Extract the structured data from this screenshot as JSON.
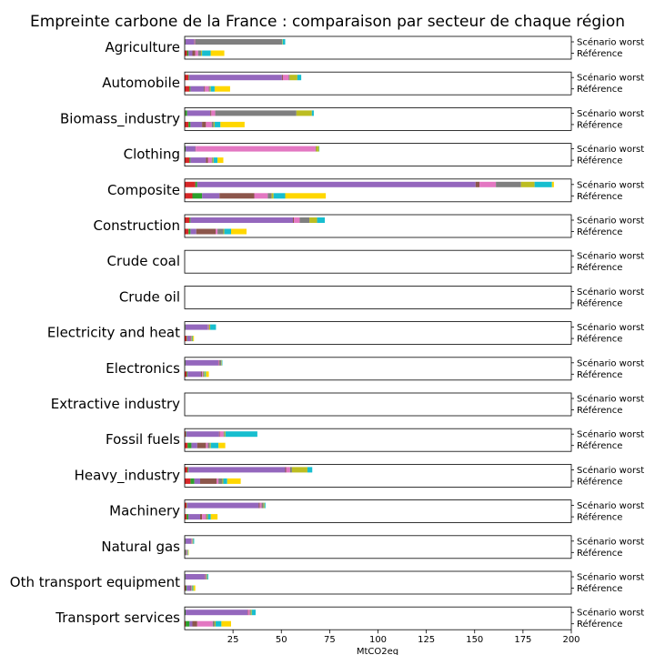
{
  "chart_data": {
    "type": "bar",
    "orientation": "horizontal-stacked",
    "title": "Empreinte carbone de la France : comparaison par secteur de chaque région",
    "xlabel": "MtCO2eq",
    "xlim": [
      0,
      200
    ],
    "xticks": [
      25,
      50,
      75,
      100,
      125,
      150,
      175,
      200
    ],
    "row_labels": [
      "Scénario worst",
      "Référence"
    ],
    "colors": [
      "#d62728",
      "#2ca02c",
      "#9467bd",
      "#8c564b",
      "#e377c2",
      "#7f7f7f",
      "#bcbd22",
      "#17becf",
      "#ffd700"
    ],
    "sectors": [
      {
        "name": "Agriculture",
        "worst": [
          0.2,
          0.2,
          4.5,
          0.2,
          0.3,
          45.0,
          0.3,
          1.3,
          0
        ],
        "reference": [
          1.2,
          0.8,
          2.0,
          1.5,
          1.5,
          1.5,
          0.5,
          4.5,
          7.0
        ]
      },
      {
        "name": "Automobile",
        "worst": [
          2.0,
          0.3,
          48.0,
          0.5,
          3.0,
          0.5,
          4.0,
          2.0,
          0
        ],
        "reference": [
          2.5,
          0.5,
          7.0,
          0.5,
          2.0,
          0.5,
          0.5,
          2.0,
          8.0
        ]
      },
      {
        "name": "Biomass_industry",
        "worst": [
          0.3,
          1.0,
          12.0,
          0.5,
          2.0,
          42.0,
          8.0,
          1.0,
          0
        ],
        "reference": [
          2.0,
          1.0,
          6.0,
          2.0,
          3.0,
          1.0,
          0.5,
          3.0,
          12.5
        ]
      },
      {
        "name": "Clothing",
        "worst": [
          0.2,
          0.3,
          5.0,
          0.2,
          62.0,
          0.3,
          1.5,
          0.2,
          0
        ],
        "reference": [
          2.5,
          0.5,
          8.0,
          1.0,
          2.0,
          0.5,
          0.5,
          2.0,
          3.0
        ]
      },
      {
        "name": "Composite",
        "worst": [
          5.5,
          1.0,
          144.0,
          2.0,
          8.5,
          13.0,
          7.0,
          9.0,
          1.0
        ],
        "reference": [
          4.0,
          5.0,
          9.0,
          18.0,
          7.0,
          2.0,
          1.0,
          6.0,
          21.0
        ]
      },
      {
        "name": "Construction",
        "worst": [
          2.5,
          0.5,
          53.0,
          0.5,
          3.0,
          5.0,
          4.0,
          4.0,
          0
        ],
        "reference": [
          2.0,
          1.0,
          3.0,
          10.0,
          1.0,
          3.0,
          0.5,
          3.5,
          8.0
        ]
      },
      {
        "name": "Crude coal",
        "worst": [
          0,
          0,
          0,
          0,
          0,
          0,
          0,
          0,
          0
        ],
        "reference": [
          0,
          0,
          0,
          0,
          0,
          0,
          0,
          0,
          0
        ]
      },
      {
        "name": "Crude oil",
        "worst": [
          0,
          0,
          0,
          0,
          0,
          0,
          0,
          0,
          0
        ],
        "reference": [
          0,
          0,
          0,
          0,
          0,
          0,
          0,
          0,
          0
        ]
      },
      {
        "name": "Electricity and heat",
        "worst": [
          0.2,
          0.2,
          11.5,
          0.2,
          0.3,
          0.3,
          0.5,
          3.0,
          0
        ],
        "reference": [
          1.0,
          0.3,
          1.5,
          0.3,
          0.3,
          0.3,
          0.3,
          0.3,
          0.5
        ]
      },
      {
        "name": "Electronics",
        "worst": [
          0.2,
          0.2,
          17.0,
          0.2,
          0.3,
          1.0,
          0.3,
          0.3,
          0
        ],
        "reference": [
          1.0,
          0.5,
          7.0,
          0.5,
          0.5,
          0.5,
          0.5,
          0.5,
          1.5
        ]
      },
      {
        "name": "Extractive industry",
        "worst": [
          0,
          0,
          0,
          0,
          0,
          0,
          0,
          0,
          0
        ],
        "reference": [
          0,
          0,
          0,
          0,
          0,
          0,
          0,
          0,
          0
        ]
      },
      {
        "name": "Fossil fuels",
        "worst": [
          0.5,
          0.3,
          17.0,
          0.3,
          2.0,
          0.5,
          0.5,
          16.5,
          0
        ],
        "reference": [
          1.5,
          2.0,
          3.0,
          4.5,
          1.0,
          1.0,
          0.5,
          4.0,
          3.5
        ]
      },
      {
        "name": "Heavy_industry",
        "worst": [
          1.5,
          0.5,
          50.0,
          0.5,
          2.0,
          1.0,
          8.0,
          2.5,
          0
        ],
        "reference": [
          3.0,
          2.0,
          3.0,
          8.5,
          1.0,
          2.0,
          0.5,
          2.0,
          7.0
        ]
      },
      {
        "name": "Machinery",
        "worst": [
          1.0,
          0.3,
          37.0,
          0.5,
          1.0,
          1.0,
          0.5,
          0.5,
          0
        ],
        "reference": [
          1.0,
          1.0,
          6.0,
          1.0,
          2.0,
          0.5,
          0.5,
          1.5,
          3.5
        ]
      },
      {
        "name": "Natural gas",
        "worst": [
          0.2,
          0.2,
          3.0,
          0.2,
          0.3,
          0.2,
          0.3,
          0.5,
          0
        ],
        "reference": [
          0.3,
          0.2,
          0.3,
          0.3,
          0.2,
          0.2,
          0.2,
          0.2,
          0.2
        ]
      },
      {
        "name": "Oth transport equipment",
        "worst": [
          0.2,
          0.2,
          10.0,
          0.2,
          0.3,
          0.5,
          0.3,
          0.5,
          0
        ],
        "reference": [
          0.5,
          0.5,
          2.0,
          0.3,
          0.3,
          0.2,
          0.2,
          0.5,
          1.0
        ]
      },
      {
        "name": "Transport services",
        "worst": [
          0.2,
          0.3,
          32.0,
          0.2,
          1.0,
          0.5,
          0.5,
          2.0,
          0
        ],
        "reference": [
          0.5,
          2.0,
          1.5,
          2.5,
          8.0,
          1.0,
          0.5,
          3.0,
          5.0
        ]
      }
    ]
  }
}
